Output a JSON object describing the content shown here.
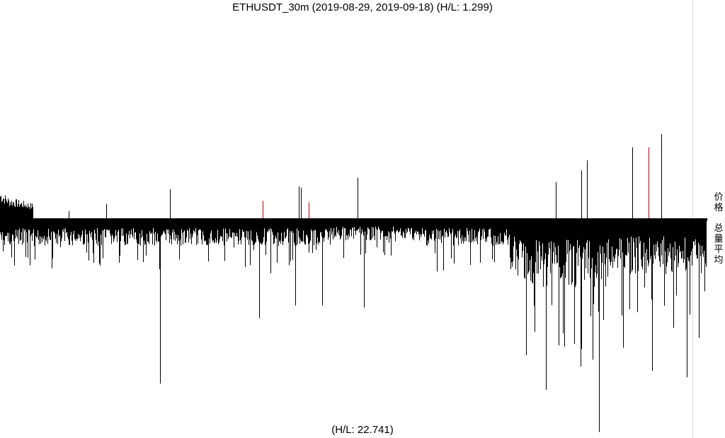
{
  "title": "ETHUSDT_30m (2019-08-29, 2019-09-18) (H/L: 1.299)",
  "volume_hl_label": "(H/L: 22.741)",
  "side_labels": {
    "price": "价格",
    "volume": "总量平均"
  },
  "colors": {
    "bar": "#000000",
    "highlight": "#c00000",
    "divider": "#d9d9d9"
  },
  "chart_data": {
    "type": "bar",
    "title": "ETHUSDT_30m (2019-08-29, 2019-09-18) (H/L: 1.299)",
    "x_range": [
      "2019-08-29",
      "2019-09-18"
    ],
    "price_panel": {
      "description": "upward bars = price spikes relative to baseline",
      "hl_ratio": 1.299,
      "spikes": [
        {
          "x_fraction": 0.097,
          "value": 0.05,
          "color": "black"
        },
        {
          "x_fraction": 0.15,
          "value": 0.1,
          "color": "black"
        },
        {
          "x_fraction": 0.24,
          "value": 0.2,
          "color": "black"
        },
        {
          "x_fraction": 0.372,
          "value": 0.12,
          "color": "red"
        },
        {
          "x_fraction": 0.423,
          "value": 0.22,
          "color": "black"
        },
        {
          "x_fraction": 0.426,
          "value": 0.21,
          "color": "black"
        },
        {
          "x_fraction": 0.437,
          "value": 0.11,
          "color": "red"
        },
        {
          "x_fraction": 0.506,
          "value": 0.28,
          "color": "black"
        },
        {
          "x_fraction": 0.787,
          "value": 0.25,
          "color": "black"
        },
        {
          "x_fraction": 0.823,
          "value": 0.33,
          "color": "black"
        },
        {
          "x_fraction": 0.831,
          "value": 0.4,
          "color": "black"
        },
        {
          "x_fraction": 0.895,
          "value": 0.49,
          "color": "black"
        },
        {
          "x_fraction": 0.918,
          "value": 0.49,
          "color": "red"
        },
        {
          "x_fraction": 0.936,
          "value": 0.58,
          "color": "black"
        }
      ]
    },
    "volume_panel": {
      "description": "downward bars = volume average relative to baseline",
      "hl_ratio": 22.741,
      "spikes": [
        {
          "x_fraction": 0.226,
          "value": 0.77
        },
        {
          "x_fraction": 0.367,
          "value": 0.46
        },
        {
          "x_fraction": 0.418,
          "value": 0.4
        },
        {
          "x_fraction": 0.456,
          "value": 0.4
        },
        {
          "x_fraction": 0.515,
          "value": 0.41
        },
        {
          "x_fraction": 0.773,
          "value": 0.8
        },
        {
          "x_fraction": 0.791,
          "value": 0.59
        },
        {
          "x_fraction": 0.822,
          "value": 0.69
        },
        {
          "x_fraction": 0.848,
          "value": 1.0
        },
        {
          "x_fraction": 0.923,
          "value": 0.71
        },
        {
          "x_fraction": 0.972,
          "value": 0.74
        }
      ]
    }
  }
}
